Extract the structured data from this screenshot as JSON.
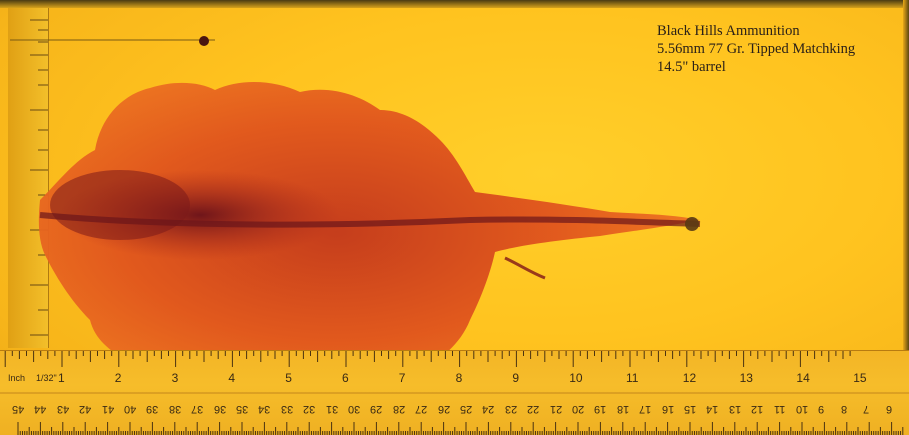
{
  "caption": {
    "line1": "Black Hills Ammunition",
    "line2": "5.56mm 77 Gr. Tipped Matchking",
    "line3": "14.5\" barrel"
  },
  "ruler": {
    "inch_unit": "Inch",
    "inch_fraction": "1/32\"",
    "inch_labels": [
      "1",
      "2",
      "3",
      "4",
      "5",
      "6",
      "7",
      "8",
      "9",
      "10",
      "11",
      "12",
      "13",
      "14",
      "15"
    ],
    "cm_labels": [
      "45",
      "44",
      "43",
      "42",
      "41",
      "40",
      "39",
      "38",
      "37",
      "36",
      "35",
      "34",
      "33",
      "32",
      "31",
      "30",
      "29",
      "28",
      "27",
      "26",
      "25",
      "24",
      "23",
      "22",
      "21",
      "20",
      "19",
      "18",
      "17",
      "16",
      "15",
      "14",
      "13",
      "12",
      "11",
      "10",
      "9",
      "8",
      "7",
      "6"
    ]
  },
  "colors": {
    "gel": "#ffc31f",
    "wound_cavity": "#e8561a",
    "wound_dark": "#8a1f1a"
  }
}
